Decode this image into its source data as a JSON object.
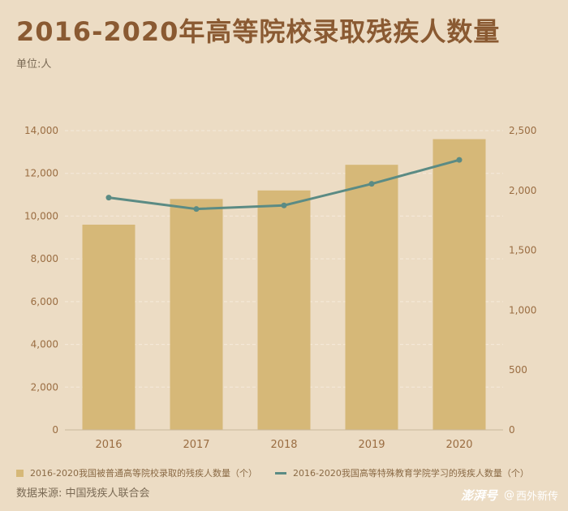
{
  "title": "2016-2020年高等院校录取残疾人数量",
  "unit_label": "单位:人",
  "source": "数据来源: 中国残疾人联合会",
  "brand": {
    "name": "澎湃号",
    "at": "@",
    "account": "西外新传"
  },
  "colors": {
    "bar": "#d6b878",
    "line": "#5b8b84",
    "axis_text": "#9a6d42",
    "grid": "#f5eadb"
  },
  "chart_data": {
    "type": "bar+line",
    "categories": [
      "2016",
      "2017",
      "2018",
      "2019",
      "2020"
    ],
    "left_axis": {
      "ylim": [
        0,
        14000
      ],
      "ticks": [
        "0",
        "2,000",
        "4,000",
        "6,000",
        "8,000",
        "10,000",
        "12,000",
        "14,000"
      ]
    },
    "right_axis": {
      "ylim": [
        0,
        2500
      ],
      "ticks": [
        "0",
        "500",
        "1,000",
        "1,500",
        "2,000",
        "2,500"
      ]
    },
    "series": [
      {
        "name": "2016-2020我国被普通高等院校录取的残疾人数量（个）",
        "type": "bar",
        "axis": "left",
        "values": [
          9600,
          10800,
          11200,
          12400,
          13600
        ]
      },
      {
        "name": "2016-2020我国高等特殊教育学院学习的残疾人数量（个）",
        "type": "line",
        "axis": "right",
        "values": [
          1940,
          1845,
          1875,
          2055,
          2255
        ]
      }
    ],
    "legend_position": "bottom"
  }
}
